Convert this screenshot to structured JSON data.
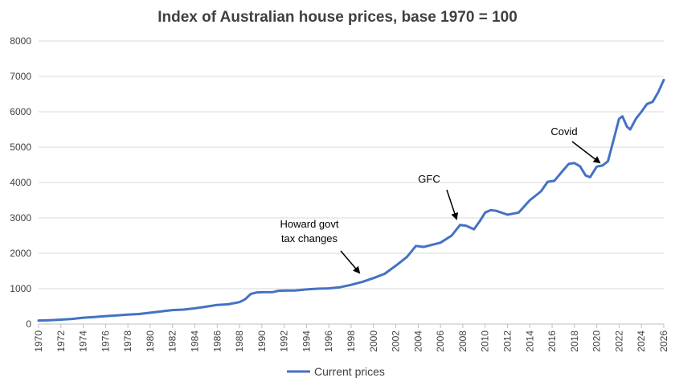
{
  "chart_data": {
    "type": "line",
    "title": "Index of Australian house prices, base 1970 = 100",
    "xlabel": "",
    "ylabel": "",
    "xlim": [
      1970,
      2026
    ],
    "ylim": [
      0,
      8000
    ],
    "y_ticks": [
      0,
      1000,
      2000,
      3000,
      4000,
      5000,
      6000,
      7000,
      8000
    ],
    "x_ticks": [
      1970,
      1972,
      1974,
      1976,
      1978,
      1980,
      1982,
      1984,
      1986,
      1988,
      1990,
      1992,
      1994,
      1996,
      1998,
      2000,
      2002,
      2004,
      2006,
      2008,
      2010,
      2012,
      2014,
      2016,
      2018,
      2020,
      2022,
      2024,
      2026
    ],
    "grid": "horizontal",
    "legend_position": "bottom",
    "colors": {
      "series": "#4472c4",
      "text": "#404040",
      "grid": "#d9d9d9",
      "arrow": "#000000"
    },
    "series": [
      {
        "name": "Current prices",
        "points": [
          [
            1970,
            100
          ],
          [
            1971,
            110
          ],
          [
            1972,
            125
          ],
          [
            1973,
            145
          ],
          [
            1974,
            180
          ],
          [
            1975,
            200
          ],
          [
            1976,
            225
          ],
          [
            1977,
            245
          ],
          [
            1978,
            265
          ],
          [
            1979,
            285
          ],
          [
            1980,
            320
          ],
          [
            1981,
            360
          ],
          [
            1982,
            395
          ],
          [
            1983,
            410
          ],
          [
            1984,
            445
          ],
          [
            1985,
            490
          ],
          [
            1986,
            540
          ],
          [
            1987,
            560
          ],
          [
            1988,
            620
          ],
          [
            1988.5,
            700
          ],
          [
            1989,
            850
          ],
          [
            1989.5,
            890
          ],
          [
            1990,
            900
          ],
          [
            1991,
            905
          ],
          [
            1991.5,
            940
          ],
          [
            1992,
            945
          ],
          [
            1993,
            950
          ],
          [
            1994,
            980
          ],
          [
            1995,
            1000
          ],
          [
            1996,
            1010
          ],
          [
            1997,
            1040
          ],
          [
            1998,
            1110
          ],
          [
            1999,
            1190
          ],
          [
            2000,
            1300
          ],
          [
            2001,
            1420
          ],
          [
            2002,
            1650
          ],
          [
            2003,
            1900
          ],
          [
            2003.8,
            2210
          ],
          [
            2004.5,
            2180
          ],
          [
            2005,
            2220
          ],
          [
            2006,
            2300
          ],
          [
            2007,
            2500
          ],
          [
            2007.75,
            2800
          ],
          [
            2008.3,
            2780
          ],
          [
            2009,
            2680
          ],
          [
            2009.5,
            2900
          ],
          [
            2010,
            3150
          ],
          [
            2010.5,
            3220
          ],
          [
            2011,
            3200
          ],
          [
            2012,
            3090
          ],
          [
            2013,
            3150
          ],
          [
            2014,
            3500
          ],
          [
            2015,
            3750
          ],
          [
            2015.6,
            4020
          ],
          [
            2016.2,
            4050
          ],
          [
            2017,
            4350
          ],
          [
            2017.5,
            4530
          ],
          [
            2018,
            4550
          ],
          [
            2018.5,
            4460
          ],
          [
            2019,
            4200
          ],
          [
            2019.4,
            4150
          ],
          [
            2020,
            4450
          ],
          [
            2020.5,
            4480
          ],
          [
            2021,
            4600
          ],
          [
            2021.5,
            5200
          ],
          [
            2022,
            5800
          ],
          [
            2022.3,
            5870
          ],
          [
            2022.7,
            5580
          ],
          [
            2023,
            5500
          ],
          [
            2023.5,
            5800
          ],
          [
            2024,
            6000
          ],
          [
            2024.5,
            6220
          ],
          [
            2025,
            6280
          ],
          [
            2025.5,
            6550
          ],
          [
            2026,
            6900
          ]
        ]
      }
    ],
    "annotations": [
      {
        "lines": [
          "Howard govt",
          "tax changes"
        ],
        "x": 1998.7,
        "y": 1400
      },
      {
        "lines": [
          "GFC"
        ],
        "x": 2007.8,
        "y": 2970
      },
      {
        "lines": [
          "Covid"
        ],
        "x": 2020.4,
        "y": 4580
      }
    ]
  }
}
